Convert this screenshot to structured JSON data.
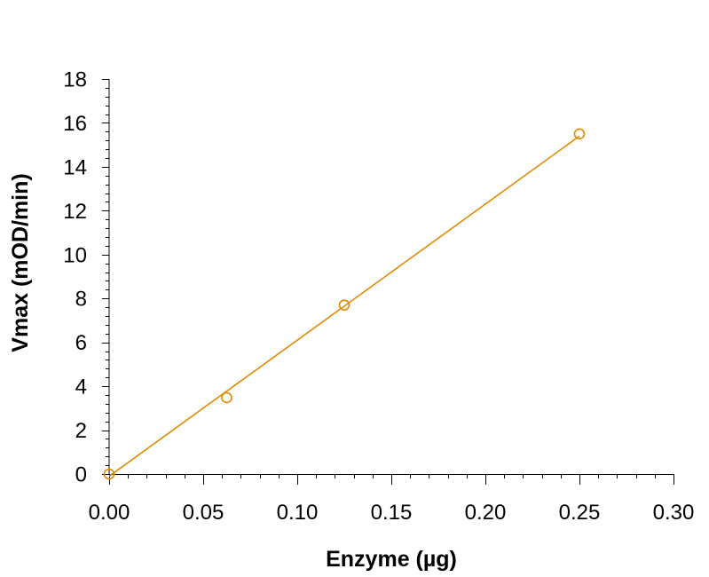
{
  "chart_data": {
    "type": "scatter",
    "title": "",
    "xlabel": "Enzyme (µg)",
    "ylabel": "Vmax (mOD/min)",
    "xlim": [
      0,
      0.3
    ],
    "ylim": [
      0,
      18
    ],
    "x_ticks": [
      "0.00",
      "0.05",
      "0.10",
      "0.15",
      "0.20",
      "0.25",
      "0.30"
    ],
    "y_ticks": [
      "0",
      "2",
      "4",
      "6",
      "8",
      "10",
      "12",
      "14",
      "16",
      "18"
    ],
    "grid": false,
    "legend": null,
    "series": [
      {
        "name": "Vmax",
        "marker": "open-circle",
        "color": "#E08A00",
        "x": [
          0,
          0.0625,
          0.125,
          0.25
        ],
        "y": [
          0,
          3.48,
          7.7,
          15.5
        ]
      }
    ],
    "fit_line": {
      "type": "linear",
      "color": "#E08A00",
      "x": [
        0,
        0.25
      ],
      "y": [
        -0.1,
        15.4
      ]
    }
  }
}
